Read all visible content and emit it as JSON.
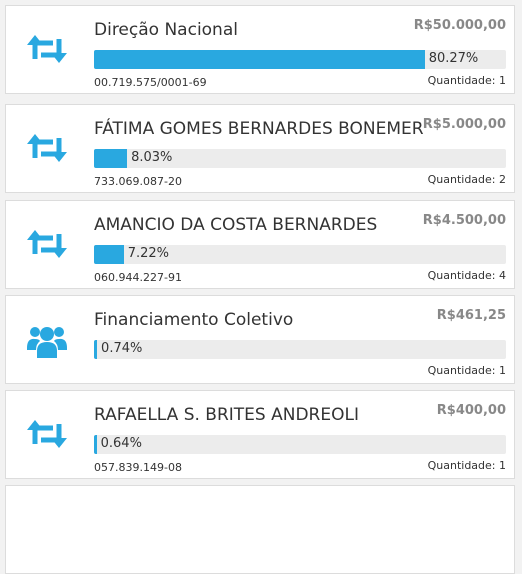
{
  "items": [
    {
      "icon": "retweet",
      "name": "Direção Nacional",
      "amount": "R$50.000,00",
      "percent": 80.27,
      "percent_label": "80.27%",
      "document": "00.719.575/0001-69",
      "quantity": "Quantidade: 1"
    },
    {
      "icon": "retweet",
      "name": "FÁTIMA GOMES BERNARDES BONEMER",
      "amount": "R$5.000,00",
      "percent": 8.03,
      "percent_label": "8.03%",
      "document": "733.069.087-20",
      "quantity": "Quantidade: 2"
    },
    {
      "icon": "retweet",
      "name": "AMANCIO DA COSTA BERNARDES",
      "amount": "R$4.500,00",
      "percent": 7.22,
      "percent_label": "7.22%",
      "document": "060.944.227-91",
      "quantity": "Quantidade: 4"
    },
    {
      "icon": "group",
      "name": "Financiamento Coletivo",
      "amount": "R$461,25",
      "percent": 0.74,
      "percent_label": "0.74%",
      "quantity": "Quantidade: 1"
    },
    {
      "icon": "retweet",
      "name": "RAFAELLA S. BRITES ANDREOLI",
      "amount": "R$400,00",
      "percent": 0.64,
      "percent_label": "0.64%",
      "document": "057.839.149-08",
      "quantity": "Quantidade: 1"
    }
  ]
}
